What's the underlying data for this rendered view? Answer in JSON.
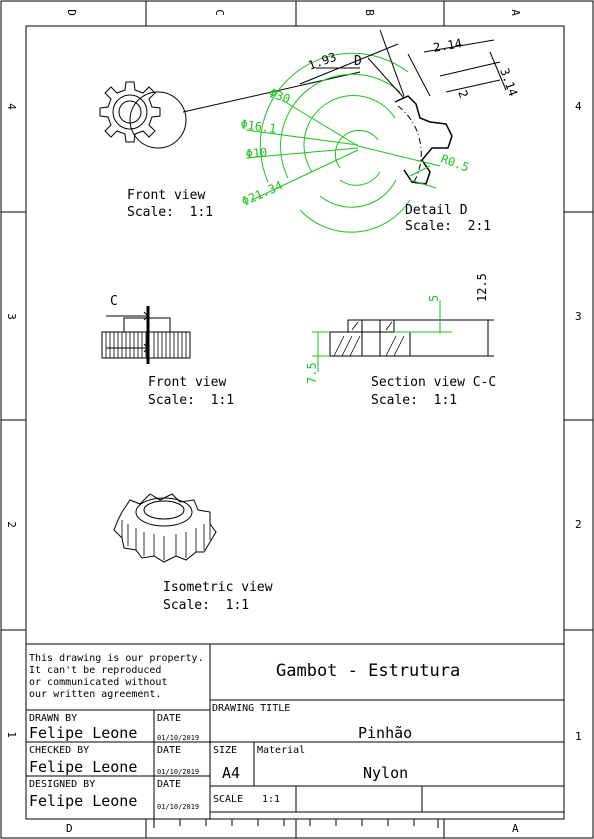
{
  "zones": {
    "top": [
      "D",
      "C",
      "B",
      "A"
    ],
    "bottom": [
      "D",
      "A"
    ],
    "left": [
      "4",
      "3",
      "2",
      "1"
    ],
    "right": [
      "4",
      "3",
      "2",
      "1"
    ]
  },
  "views": {
    "front_top": {
      "title": "Front view",
      "scale": "Scale:  1:1"
    },
    "detail": {
      "title": "Detail D",
      "scale": "Scale:  2:1",
      "label": "D"
    },
    "front_mid": {
      "title": "Front view",
      "scale": "Scale:  1:1",
      "section_label": "C"
    },
    "section": {
      "title": "Section view C-C",
      "scale": "Scale:  1:1"
    },
    "isometric": {
      "title": "Isometric view",
      "scale": "Scale:  1:1"
    }
  },
  "dimensions": {
    "d30": "Φ30",
    "d16": "Φ16.1",
    "d10": "Φ10",
    "d21": "Φ21.34",
    "r05": "R0.5",
    "t193": "1.93",
    "t214": "2.14",
    "t314": "3.14",
    "t2": "2",
    "h125": "12.5",
    "h5": "5",
    "h75": "7.5"
  },
  "title_block": {
    "notice_lines": [
      "This drawing is our property.",
      "It can't be reproduced",
      "or communicated without",
      "our written agreement."
    ],
    "project": "Gambot - Estrutura",
    "drawing_title_label": "DRAWING TITLE",
    "drawing_title": "Pinhão",
    "drawn_by_label": "DRAWN BY",
    "drawn_by": "Felipe Leone",
    "checked_by_label": "CHECKED BY",
    "checked_by": "Felipe Leone",
    "designed_by_label": "DESIGNED BY",
    "designed_by": "Felipe Leone",
    "date_label": "DATE",
    "date": "01/10/2019",
    "size_label": "SIZE",
    "size": "A4",
    "material_label": "Material",
    "material": "Nylon",
    "scale_label": "SCALE",
    "scale": "1:1"
  },
  "colors": {
    "dimension_green": "#1dc21d",
    "line": "#000000"
  }
}
